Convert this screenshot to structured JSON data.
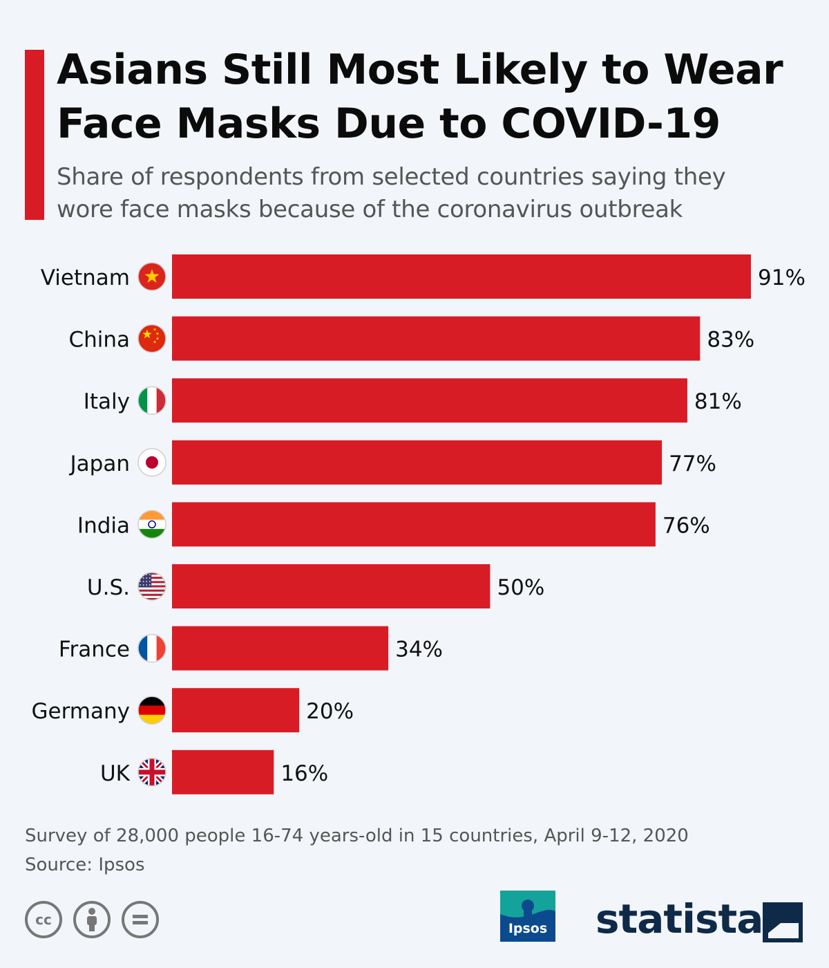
{
  "header": {
    "title_line1": "Asians Still Most Likely to Wear",
    "title_line2": "Face Masks Due to COVID-19",
    "subtitle_line1": "Share of respondents from selected countries saying they",
    "subtitle_line2": "wore face masks because of the coronavirus outbreak"
  },
  "chart_data": {
    "type": "bar",
    "orientation": "horizontal",
    "title": "Asians Still Most Likely to Wear Face Masks Due to COVID-19",
    "subtitle": "Share of respondents from selected countries saying they wore face masks because of the coronavirus outbreak",
    "categories": [
      "Vietnam",
      "China",
      "Italy",
      "Japan",
      "India",
      "U.S.",
      "France",
      "Germany",
      "UK"
    ],
    "values": [
      91,
      83,
      81,
      77,
      76,
      50,
      34,
      20,
      16
    ],
    "value_suffix": "%",
    "flags": [
      "vietnam-flag-icon",
      "china-flag-icon",
      "italy-flag-icon",
      "japan-flag-icon",
      "india-flag-icon",
      "us-flag-icon",
      "france-flag-icon",
      "germany-flag-icon",
      "uk-flag-icon"
    ],
    "bar_color": "#d81c25",
    "xlim": [
      0,
      91
    ],
    "grid": false,
    "legend": "none"
  },
  "footer": {
    "note": "Survey of 28,000 people 16-74 years-old in 15 countries, April 9-12, 2020",
    "source": "Source: Ipsos",
    "cc_label": "cc",
    "ipsos_label": "Ipsos",
    "statista_label": "statista"
  },
  "colors": {
    "accent": "#d81c25",
    "background": "#f2f5f9",
    "brand_navy": "#0f2a48"
  }
}
